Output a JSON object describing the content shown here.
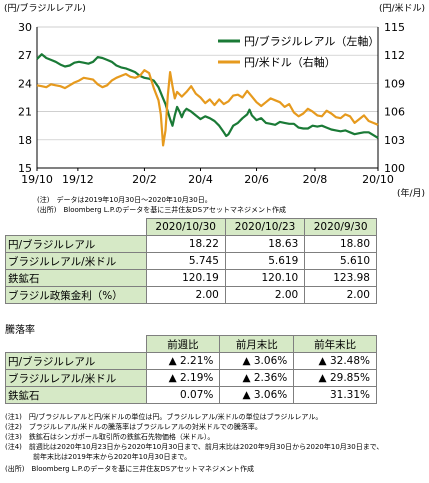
{
  "chart_data": {
    "type": "line",
    "left_axis_label": "(円/ブラジルレアル)",
    "right_axis_label": "(円/米ドル)",
    "x_unit_label": "(年/月)",
    "x_ticks": [
      "19/10",
      "19/12",
      "20/2",
      "20/4",
      "20/6",
      "20/8",
      "20/10"
    ],
    "y_left": {
      "min": 15,
      "max": 30,
      "ticks": [
        15,
        18,
        21,
        24,
        27,
        30
      ]
    },
    "y_right": {
      "min": 100,
      "max": 115,
      "ticks": [
        100,
        103,
        106,
        109,
        112,
        115
      ]
    },
    "grid": true,
    "legend_position": "top-right",
    "series": [
      {
        "name": "円/ブラジルレアル（左軸）",
        "axis": "left",
        "color": "#1a7a36",
        "points": [
          [
            0,
            26.6
          ],
          [
            2,
            27.1
          ],
          [
            3,
            26.9
          ],
          [
            4,
            26.7
          ],
          [
            6,
            26.5
          ],
          [
            8,
            26.3
          ],
          [
            10,
            26.0
          ],
          [
            12,
            25.8
          ],
          [
            14,
            25.9
          ],
          [
            16,
            26.2
          ],
          [
            18,
            26.3
          ],
          [
            20,
            26.2
          ],
          [
            22,
            26.1
          ],
          [
            24,
            26.3
          ],
          [
            26,
            26.8
          ],
          [
            28,
            26.7
          ],
          [
            30,
            26.5
          ],
          [
            32,
            26.3
          ],
          [
            34,
            25.9
          ],
          [
            36,
            25.7
          ],
          [
            38,
            25.6
          ],
          [
            40,
            25.4
          ],
          [
            42,
            25.2
          ],
          [
            44,
            24.8
          ],
          [
            46,
            24.6
          ],
          [
            48,
            24.5
          ],
          [
            50,
            24.3
          ],
          [
            52,
            23.6
          ],
          [
            53,
            23.0
          ],
          [
            54,
            22.4
          ],
          [
            55,
            21.8
          ],
          [
            56,
            21.0
          ],
          [
            57,
            20.2
          ],
          [
            58,
            19.5
          ],
          [
            59,
            20.6
          ],
          [
            60,
            21.5
          ],
          [
            61,
            21.0
          ],
          [
            62,
            20.4
          ],
          [
            63,
            21.0
          ],
          [
            64,
            21.3
          ],
          [
            66,
            21.0
          ],
          [
            68,
            20.6
          ],
          [
            70,
            20.2
          ],
          [
            72,
            20.5
          ],
          [
            74,
            20.3
          ],
          [
            76,
            20.0
          ],
          [
            78,
            19.5
          ],
          [
            80,
            18.8
          ],
          [
            81,
            18.4
          ],
          [
            82,
            18.6
          ],
          [
            84,
            19.5
          ],
          [
            86,
            19.8
          ],
          [
            88,
            20.3
          ],
          [
            90,
            20.7
          ],
          [
            91,
            21.2
          ],
          [
            92,
            20.6
          ],
          [
            94,
            20.1
          ],
          [
            96,
            20.3
          ],
          [
            98,
            19.8
          ],
          [
            100,
            19.7
          ],
          [
            102,
            19.6
          ],
          [
            104,
            19.9
          ],
          [
            106,
            19.8
          ],
          [
            108,
            19.7
          ],
          [
            110,
            19.7
          ],
          [
            112,
            19.3
          ],
          [
            114,
            19.2
          ],
          [
            116,
            19.2
          ],
          [
            118,
            19.5
          ],
          [
            120,
            19.4
          ],
          [
            122,
            19.5
          ],
          [
            124,
            19.3
          ],
          [
            126,
            19.1
          ],
          [
            128,
            19.0
          ],
          [
            130,
            18.9
          ],
          [
            132,
            19.0
          ],
          [
            134,
            18.8
          ],
          [
            136,
            18.6
          ],
          [
            138,
            18.7
          ],
          [
            140,
            18.8
          ],
          [
            142,
            18.8
          ],
          [
            144,
            18.5
          ],
          [
            146,
            18.2
          ]
        ]
      },
      {
        "name": "円/米ドル（右軸）",
        "axis": "right",
        "color": "#e69a1e",
        "points": [
          [
            0,
            108.8
          ],
          [
            2,
            108.7
          ],
          [
            4,
            108.6
          ],
          [
            6,
            108.9
          ],
          [
            8,
            108.8
          ],
          [
            10,
            108.7
          ],
          [
            12,
            108.5
          ],
          [
            14,
            108.8
          ],
          [
            16,
            109.1
          ],
          [
            18,
            109.3
          ],
          [
            20,
            109.6
          ],
          [
            22,
            109.5
          ],
          [
            24,
            109.4
          ],
          [
            26,
            108.9
          ],
          [
            28,
            108.6
          ],
          [
            30,
            108.8
          ],
          [
            32,
            109.3
          ],
          [
            34,
            109.6
          ],
          [
            36,
            109.8
          ],
          [
            38,
            110.0
          ],
          [
            40,
            109.7
          ],
          [
            42,
            109.6
          ],
          [
            44,
            109.8
          ],
          [
            46,
            110.4
          ],
          [
            48,
            110.1
          ],
          [
            50,
            108.5
          ],
          [
            52,
            107.2
          ],
          [
            53,
            105.7
          ],
          [
            54,
            102.4
          ],
          [
            55,
            104.0
          ],
          [
            56,
            107.7
          ],
          [
            57,
            110.2
          ],
          [
            58,
            108.7
          ],
          [
            59,
            107.4
          ],
          [
            60,
            108.1
          ],
          [
            62,
            107.6
          ],
          [
            64,
            108.1
          ],
          [
            66,
            108.7
          ],
          [
            68,
            107.9
          ],
          [
            70,
            107.5
          ],
          [
            72,
            106.9
          ],
          [
            74,
            107.3
          ],
          [
            76,
            106.7
          ],
          [
            78,
            107.3
          ],
          [
            80,
            106.8
          ],
          [
            82,
            107.1
          ],
          [
            84,
            107.7
          ],
          [
            86,
            107.8
          ],
          [
            88,
            107.5
          ],
          [
            90,
            108.2
          ],
          [
            92,
            107.6
          ],
          [
            94,
            107.0
          ],
          [
            96,
            106.6
          ],
          [
            98,
            107.0
          ],
          [
            100,
            107.4
          ],
          [
            102,
            107.2
          ],
          [
            104,
            107.0
          ],
          [
            106,
            106.5
          ],
          [
            108,
            106.8
          ],
          [
            110,
            105.9
          ],
          [
            112,
            105.5
          ],
          [
            114,
            105.8
          ],
          [
            116,
            106.3
          ],
          [
            118,
            106.0
          ],
          [
            120,
            105.6
          ],
          [
            122,
            105.5
          ],
          [
            124,
            106.1
          ],
          [
            126,
            105.8
          ],
          [
            128,
            105.4
          ],
          [
            130,
            105.3
          ],
          [
            132,
            105.7
          ],
          [
            134,
            105.5
          ],
          [
            136,
            104.8
          ],
          [
            138,
            105.2
          ],
          [
            140,
            105.6
          ],
          [
            142,
            105.0
          ],
          [
            144,
            104.8
          ],
          [
            146,
            104.6
          ]
        ]
      }
    ],
    "x_max": 146,
    "x_tick_positions": [
      0,
      17.5,
      46,
      70,
      94,
      119,
      146
    ]
  },
  "notes": {
    "n1": "(注)　データは2019年10月30日～2020年10月30日。",
    "n2": "(出所)　Bloomberg L.P.のデータを基に三井住友DSアセットマネジメント作成",
    "n3": "(注1)　円/ブラジルレアルと円/米ドルの単位は円。ブラジルレアル/米ドルの単位はブラジルレアル。",
    "n4": "(注2)　ブラジルレアル/米ドルの騰落率はブラジルレアルの対米ドルでの騰落率。",
    "n5": "(注3)　鉄鉱石はシンガポール取引所の鉄鉱石先物価格（米ドル）。",
    "n6": "(注4)　前週比は2020年10月23日から2020年10月30日まで、前月末比は2020年9月30日から2020年10月30日まで、",
    "n7": "　　　　前年末比は2019年末から2020年10月30日まで。",
    "n8": "(出所)　Bloomberg L.P.のデータを基に三井住友DSアセットマネジメント作成"
  },
  "levels_table": {
    "headers": [
      "2020/10/30",
      "2020/10/23",
      "2020/9/30"
    ],
    "rows": [
      {
        "label": "円/ブラジルレアル",
        "values": [
          "18.22",
          "18.63",
          "18.80"
        ]
      },
      {
        "label": "ブラジルレアル/米ドル",
        "values": [
          "5.745",
          "5.619",
          "5.610"
        ]
      },
      {
        "label": "鉄鉱石",
        "values": [
          "120.19",
          "120.10",
          "123.98"
        ]
      },
      {
        "label": "ブラジル政策金利（%）",
        "values": [
          "2.00",
          "2.00",
          "2.00"
        ]
      }
    ]
  },
  "change_table": {
    "title": "騰落率",
    "headers": [
      "前週比",
      "前月末比",
      "前年末比"
    ],
    "rows": [
      {
        "label": "円/ブラジルレアル",
        "values": [
          "▲ 2.21%",
          "▲ 3.06%",
          "▲ 32.48%"
        ]
      },
      {
        "label": "ブラジルレアル/米ドル",
        "values": [
          "▲ 2.19%",
          "▲ 2.36%",
          "▲ 29.85%"
        ]
      },
      {
        "label": "鉄鉱石",
        "values": [
          "0.07%",
          "▲ 3.06%",
          "31.31%"
        ]
      }
    ]
  }
}
